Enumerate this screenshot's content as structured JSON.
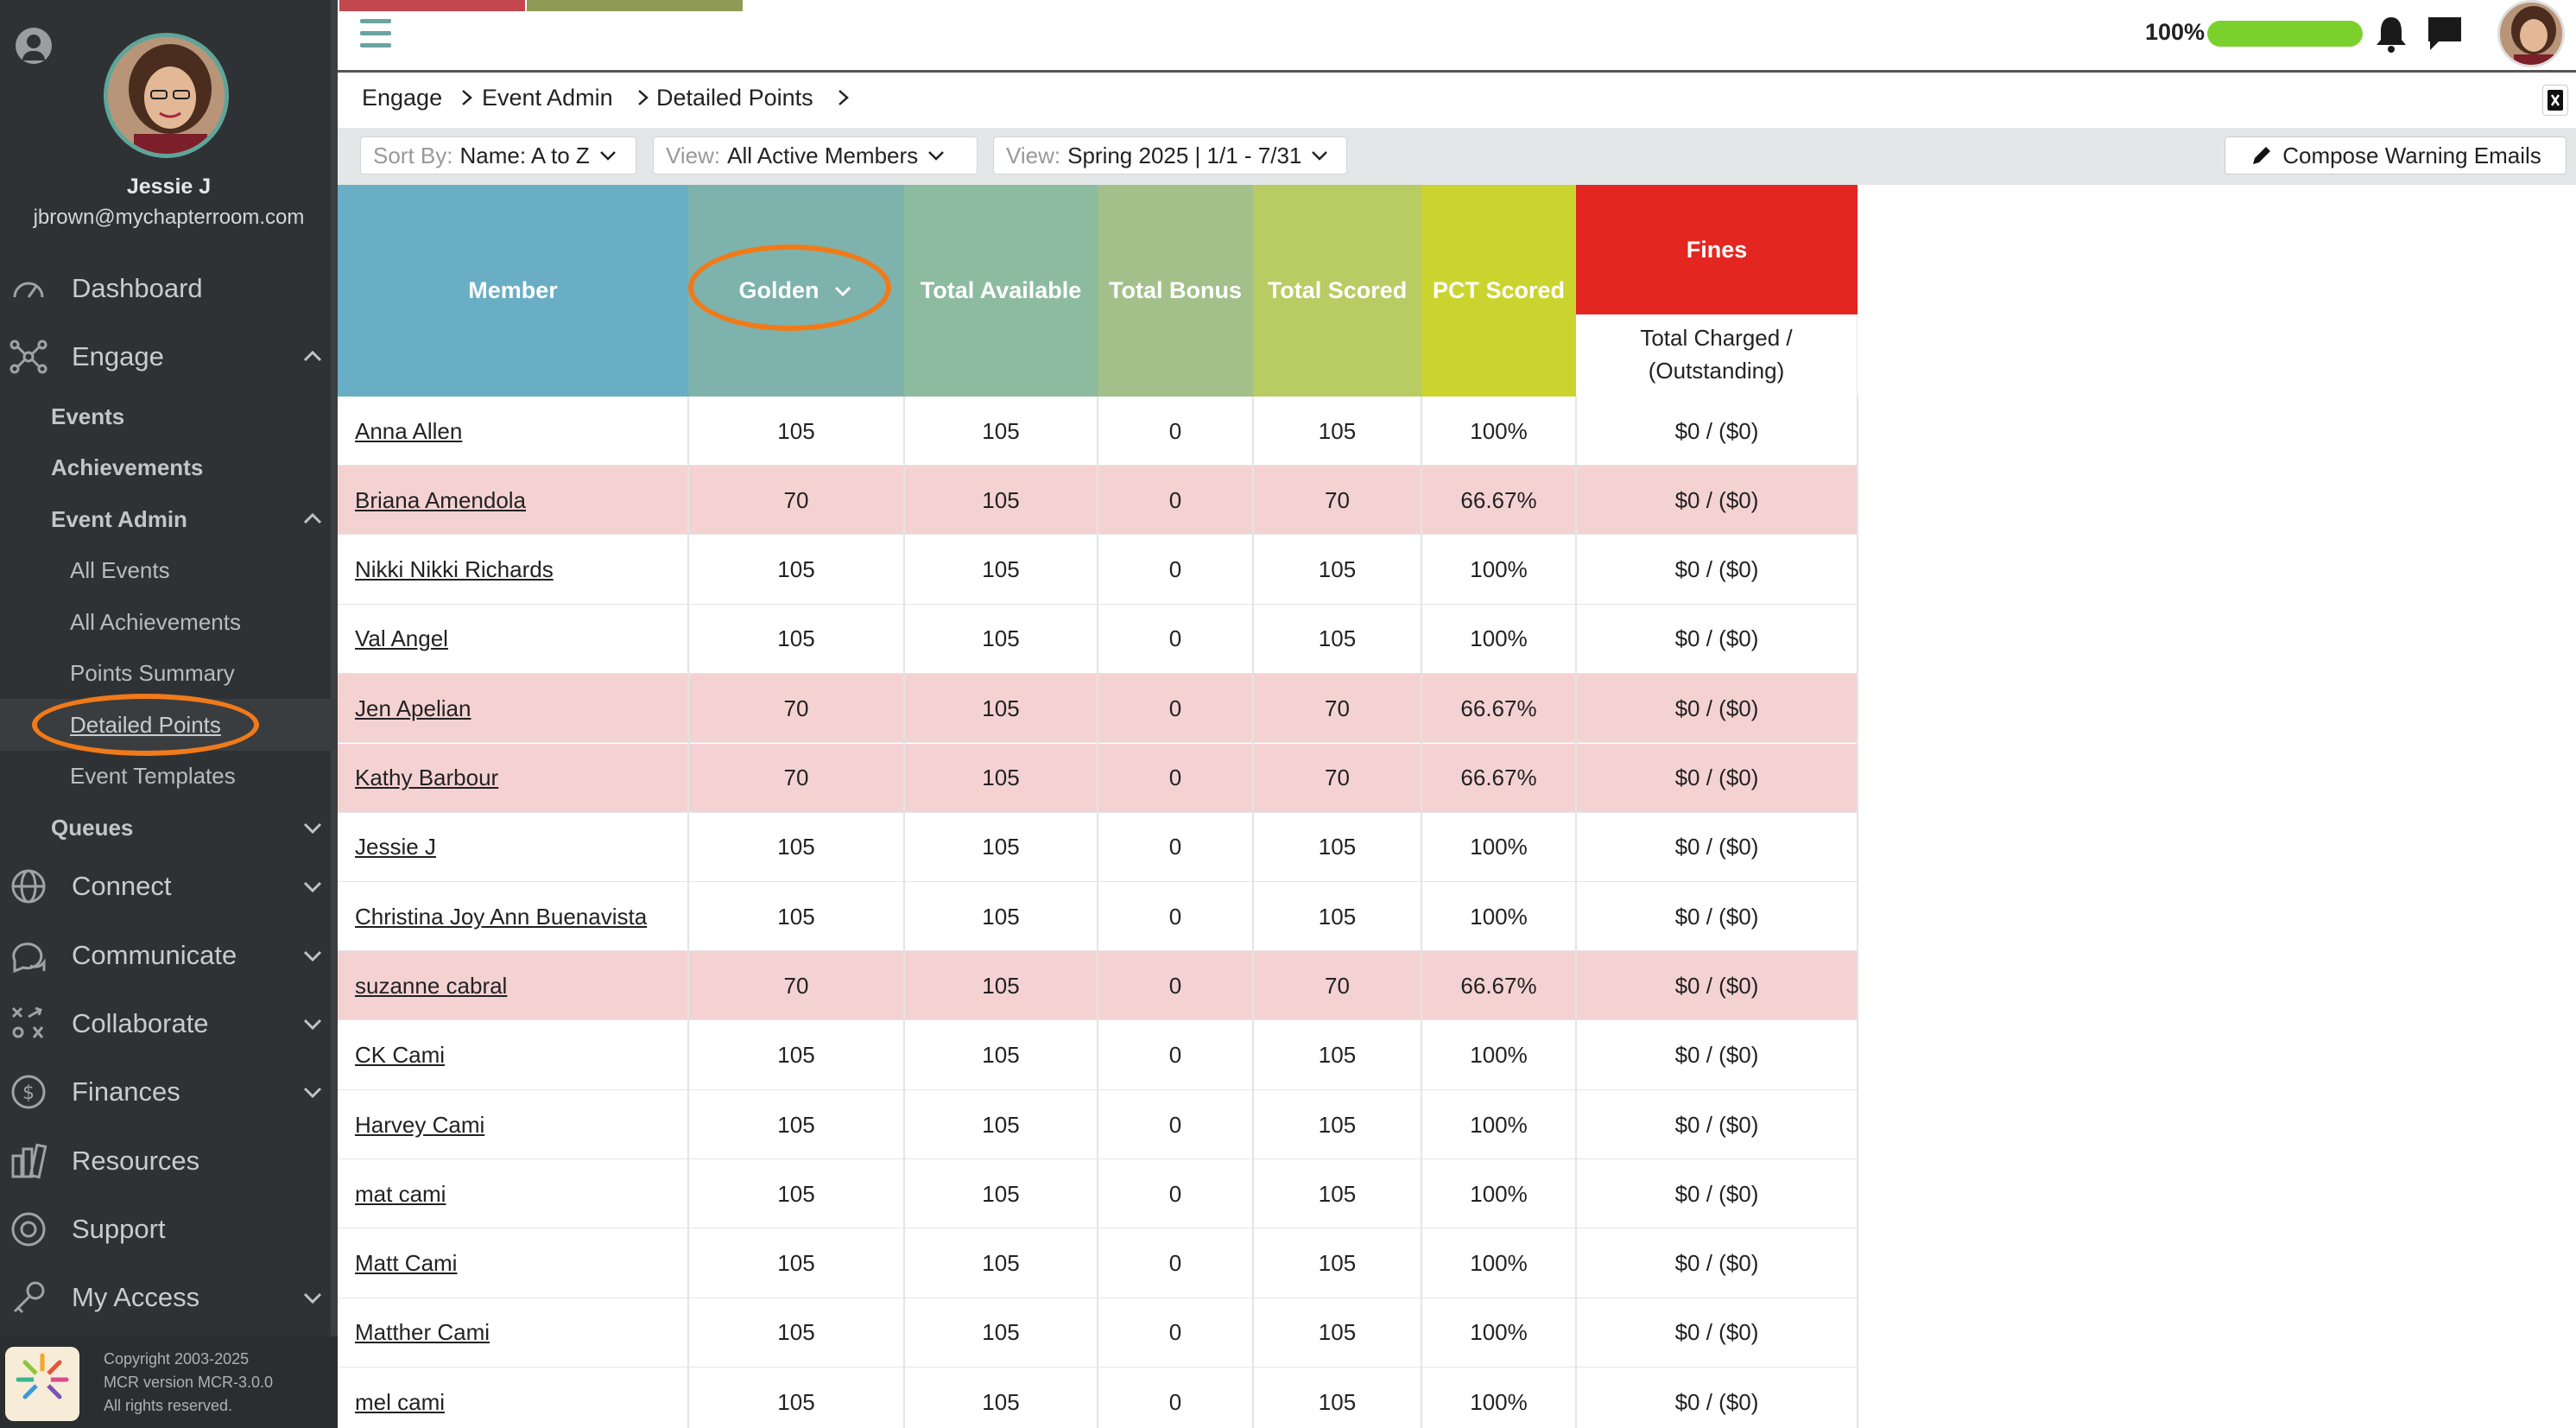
{
  "user": {
    "name": "Jessie J",
    "email": "jbrown@mychapterroom.com"
  },
  "nav": {
    "dashboard": "Dashboard",
    "engage": "Engage",
    "events": "Events",
    "achievements": "Achievements",
    "event_admin": "Event Admin",
    "all_events": "All Events",
    "all_achievements": "All Achievements",
    "points_summary": "Points Summary",
    "detailed_points": "Detailed Points",
    "event_templates": "Event Templates",
    "queues": "Queues",
    "connect": "Connect",
    "communicate": "Communicate",
    "collaborate": "Collaborate",
    "finances": "Finances",
    "resources": "Resources",
    "support": "Support",
    "my_access": "My Access"
  },
  "footer": {
    "line1": "Copyright 2003-2025",
    "line2": "MCR version MCR-3.0.0",
    "line3": "All rights reserved."
  },
  "topbar": {
    "zoom": "100%",
    "progress_fraction": 1.0
  },
  "breadcrumb": {
    "c1": "Engage",
    "c2": "Event Admin",
    "c3": "Detailed Points"
  },
  "filters": {
    "sort_prefix": "Sort By:",
    "sort_value": "Name: A to Z",
    "view_prefix": "View:",
    "view_value": "All Active Members",
    "period_prefix": "View:",
    "period_value": "Spring 2025 | 1/1 - 7/31",
    "compose": "Compose Warning Emails"
  },
  "table": {
    "headers": {
      "member": "Member",
      "golden": "Golden",
      "total_available": "Total Available",
      "total_bonus": "Total Bonus",
      "total_scored": "Total Scored",
      "pct_scored": "PCT Scored",
      "fines": "Fines",
      "fines_sub": "Total Charged / (Outstanding)"
    },
    "rows": [
      {
        "member": "Anna Allen",
        "golden": "105",
        "available": "105",
        "bonus": "0",
        "scored": "105",
        "pct": "100%",
        "fines": "$0 / ($0)"
      },
      {
        "member": "Briana Amendola",
        "golden": "70",
        "available": "105",
        "bonus": "0",
        "scored": "70",
        "pct": "66.67%",
        "fines": "$0 / ($0)"
      },
      {
        "member": "Nikki Nikki Richards",
        "golden": "105",
        "available": "105",
        "bonus": "0",
        "scored": "105",
        "pct": "100%",
        "fines": "$0 / ($0)"
      },
      {
        "member": "Val Angel",
        "golden": "105",
        "available": "105",
        "bonus": "0",
        "scored": "105",
        "pct": "100%",
        "fines": "$0 / ($0)"
      },
      {
        "member": "Jen Apelian",
        "golden": "70",
        "available": "105",
        "bonus": "0",
        "scored": "70",
        "pct": "66.67%",
        "fines": "$0 / ($0)"
      },
      {
        "member": "Kathy Barbour",
        "golden": "70",
        "available": "105",
        "bonus": "0",
        "scored": "70",
        "pct": "66.67%",
        "fines": "$0 / ($0)"
      },
      {
        "member": "Jessie J",
        "golden": "105",
        "available": "105",
        "bonus": "0",
        "scored": "105",
        "pct": "100%",
        "fines": "$0 / ($0)"
      },
      {
        "member": "Christina Joy Ann Buenavista",
        "golden": "105",
        "available": "105",
        "bonus": "0",
        "scored": "105",
        "pct": "100%",
        "fines": "$0 / ($0)"
      },
      {
        "member": "suzanne cabral",
        "golden": "70",
        "available": "105",
        "bonus": "0",
        "scored": "70",
        "pct": "66.67%",
        "fines": "$0 / ($0)"
      },
      {
        "member": "CK Cami",
        "golden": "105",
        "available": "105",
        "bonus": "0",
        "scored": "105",
        "pct": "100%",
        "fines": "$0 / ($0)"
      },
      {
        "member": "Harvey Cami",
        "golden": "105",
        "available": "105",
        "bonus": "0",
        "scored": "105",
        "pct": "100%",
        "fines": "$0 / ($0)"
      },
      {
        "member": "mat cami",
        "golden": "105",
        "available": "105",
        "bonus": "0",
        "scored": "105",
        "pct": "100%",
        "fines": "$0 / ($0)"
      },
      {
        "member": "Matt Cami",
        "golden": "105",
        "available": "105",
        "bonus": "0",
        "scored": "105",
        "pct": "100%",
        "fines": "$0 / ($0)"
      },
      {
        "member": "Matther Cami",
        "golden": "105",
        "available": "105",
        "bonus": "0",
        "scored": "105",
        "pct": "100%",
        "fines": "$0 / ($0)"
      },
      {
        "member": "mel cami",
        "golden": "105",
        "available": "105",
        "bonus": "0",
        "scored": "105",
        "pct": "100%",
        "fines": "$0 / ($0)"
      }
    ]
  },
  "colors": {
    "member_header": "#6aaec6",
    "golden_header": "#7db3ac",
    "available_header": "#8dbba0",
    "bonus_header": "#a3c08a",
    "scored_header": "#b9cb63",
    "pct_header": "#cbd42f",
    "fines_header": "#e3261f",
    "highlight": "#f07a1a",
    "alt_row": "#f5d2d2"
  }
}
